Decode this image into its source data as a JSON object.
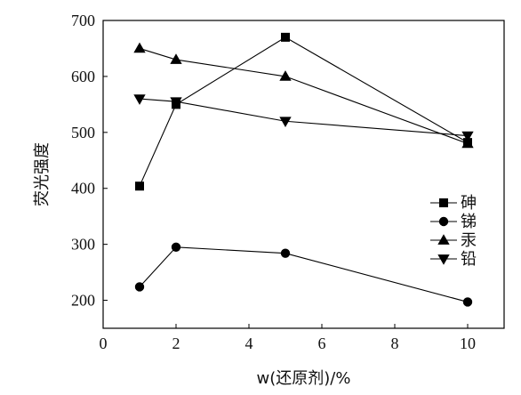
{
  "chart_data": {
    "type": "line",
    "title": "",
    "xlabel": "w(还原剂)/%",
    "ylabel": "荧光强度",
    "xlim": [
      0,
      11
    ],
    "ylim": [
      150,
      700
    ],
    "x_ticks": [
      0,
      2,
      4,
      6,
      8,
      10
    ],
    "y_ticks": [
      200,
      300,
      400,
      500,
      600,
      700
    ],
    "grid": false,
    "legend_position": "right",
    "series": [
      {
        "name": "砷",
        "marker": "square",
        "x": [
          1,
          2,
          5,
          10
        ],
        "y": [
          404,
          550,
          670,
          482
        ]
      },
      {
        "name": "锑",
        "marker": "circle",
        "x": [
          1,
          2,
          5,
          10
        ],
        "y": [
          224,
          295,
          284,
          197
        ]
      },
      {
        "name": "汞",
        "marker": "triangle-up",
        "x": [
          1,
          2,
          5,
          10
        ],
        "y": [
          650,
          630,
          600,
          480
        ]
      },
      {
        "name": "铅",
        "marker": "triangle-down",
        "x": [
          1,
          2,
          5,
          10
        ],
        "y": [
          560,
          555,
          520,
          494
        ]
      }
    ]
  }
}
